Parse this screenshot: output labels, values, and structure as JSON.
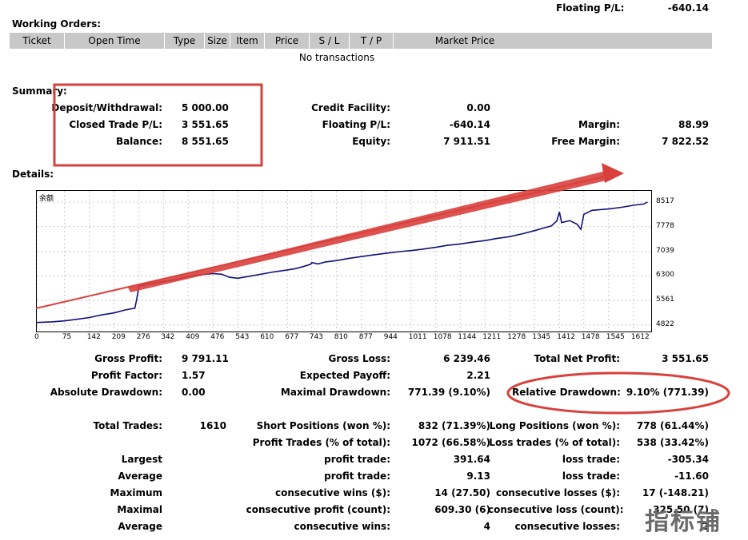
{
  "top": {
    "floating_label": "Floating P/L:",
    "floating_value": "-640.14"
  },
  "working_orders": {
    "title": "Working Orders:",
    "columns": [
      "Ticket",
      "Open Time",
      "Type",
      "Size",
      "Item",
      "Price",
      "S / L",
      "T / P",
      "Market Price"
    ],
    "empty_text": "No transactions"
  },
  "summary": {
    "title": "Summary:",
    "deposit_label": "Deposit/Withdrawal:",
    "deposit_value": "5 000.00",
    "closed_label": "Closed Trade P/L:",
    "closed_value": "3 551.65",
    "balance_label": "Balance:",
    "balance_value": "8 551.65",
    "credit_label": "Credit Facility:",
    "credit_value": "0.00",
    "floating_label": "Floating P/L:",
    "floating_value": "-640.14",
    "equity_label": "Equity:",
    "equity_value": "7 911.51",
    "margin_label": "Margin:",
    "margin_value": "88.99",
    "free_margin_label": "Free Margin:",
    "free_margin_value": "7 822.52"
  },
  "details": {
    "title": "Details:"
  },
  "chart_data": {
    "type": "line",
    "title": "余额",
    "x_ticks": [
      "0",
      "75",
      "142",
      "209",
      "276",
      "342",
      "409",
      "476",
      "543",
      "610",
      "677",
      "743",
      "810",
      "877",
      "944",
      "1011",
      "1078",
      "1144",
      "1211",
      "1278",
      "1345",
      "1412",
      "1478",
      "1545",
      "1612"
    ],
    "y_ticks": [
      "8517",
      "7778",
      "7039",
      "6300",
      "5561",
      "4822"
    ],
    "ylim": [
      4822,
      8517
    ],
    "xlim": [
      0,
      1660
    ],
    "series": [
      {
        "x": [
          0,
          40,
          75,
          110,
          142,
          175,
          209,
          240,
          265,
          270,
          276,
          300,
          342,
          380,
          409,
          440,
          476,
          500,
          520,
          543,
          580,
          610,
          640,
          677,
          700,
          720,
          740,
          743,
          760,
          780,
          810,
          840,
          877,
          910,
          944,
          980,
          1011,
          1040,
          1078,
          1110,
          1144,
          1180,
          1211,
          1240,
          1278,
          1310,
          1345,
          1370,
          1390,
          1405,
          1412,
          1418,
          1440,
          1460,
          1470,
          1478,
          1500,
          1545,
          1580,
          1612,
          1640,
          1650
        ],
        "y": [
          4900,
          4920,
          4950,
          5000,
          5050,
          5130,
          5190,
          5280,
          5330,
          5600,
          6000,
          6050,
          6130,
          6200,
          6280,
          6330,
          6370,
          6350,
          6260,
          6230,
          6300,
          6360,
          6420,
          6480,
          6520,
          6580,
          6650,
          6700,
          6660,
          6720,
          6760,
          6820,
          6880,
          6930,
          6980,
          7030,
          7060,
          7100,
          7160,
          7220,
          7260,
          7320,
          7360,
          7420,
          7480,
          7560,
          7660,
          7740,
          7800,
          7950,
          8220,
          7900,
          7960,
          7850,
          7700,
          8150,
          8270,
          8310,
          8360,
          8420,
          8460,
          8520
        ]
      }
    ]
  },
  "stats": {
    "gross_profit_label": "Gross Profit:",
    "gross_profit_value": "9 791.11",
    "gross_loss_label": "Gross Loss:",
    "gross_loss_value": "6 239.46",
    "total_net_label": "Total Net Profit:",
    "total_net_value": "3 551.65",
    "profit_factor_label": "Profit Factor:",
    "profit_factor_value": "1.57",
    "expected_payoff_label": "Expected Payoff:",
    "expected_payoff_value": "2.21",
    "abs_dd_label": "Absolute Drawdown:",
    "abs_dd_value": "0.00",
    "max_dd_label": "Maximal Drawdown:",
    "max_dd_value": "771.39 (9.10%)",
    "rel_dd_label": "Relative Drawdown:",
    "rel_dd_value": "9.10% (771.39)",
    "total_trades_label": "Total Trades:",
    "total_trades_value": "1610",
    "short_label": "Short Positions (won %):",
    "short_value": "832 (71.39%)",
    "long_label": "Long Positions (won %):",
    "long_value": "778 (61.44%)",
    "profit_trades_label": "Profit Trades (% of total):",
    "profit_trades_value": "1072 (66.58%)",
    "loss_trades_label": "Loss trades (% of total):",
    "loss_trades_value": "538 (33.42%)",
    "largest_label": "Largest",
    "largest_profit_label": "profit trade:",
    "largest_profit_value": "391.64",
    "largest_loss_label": "loss trade:",
    "largest_loss_value": "-305.34",
    "average_label": "Average",
    "average_profit_label": "profit trade:",
    "average_profit_value": "9.13",
    "average_loss_label": "loss trade:",
    "average_loss_value": "-11.60",
    "maximum_label": "Maximum",
    "max_wins_label": "consecutive wins ($):",
    "max_wins_value": "14 (27.50)",
    "max_losses_label": "consecutive losses ($):",
    "max_losses_value": "17 (-148.21)",
    "maximal_label": "Maximal",
    "maximal_profit_label": "consecutive profit (count):",
    "maximal_profit_value": "609.30 (6)",
    "maximal_loss_label": "consecutive loss (count):",
    "maximal_loss_value": "325.50 (7)",
    "average2_label": "Average",
    "avg_wins_label": "consecutive wins:",
    "avg_wins_value": "4",
    "avg_losses_label": "consecutive losses:",
    "avg_losses_value": "2"
  },
  "watermark": "指标铺",
  "colors": {
    "annotation_red": "#d9403c",
    "line_navy": "#10107a",
    "header_gray": "#c8c8c8"
  }
}
